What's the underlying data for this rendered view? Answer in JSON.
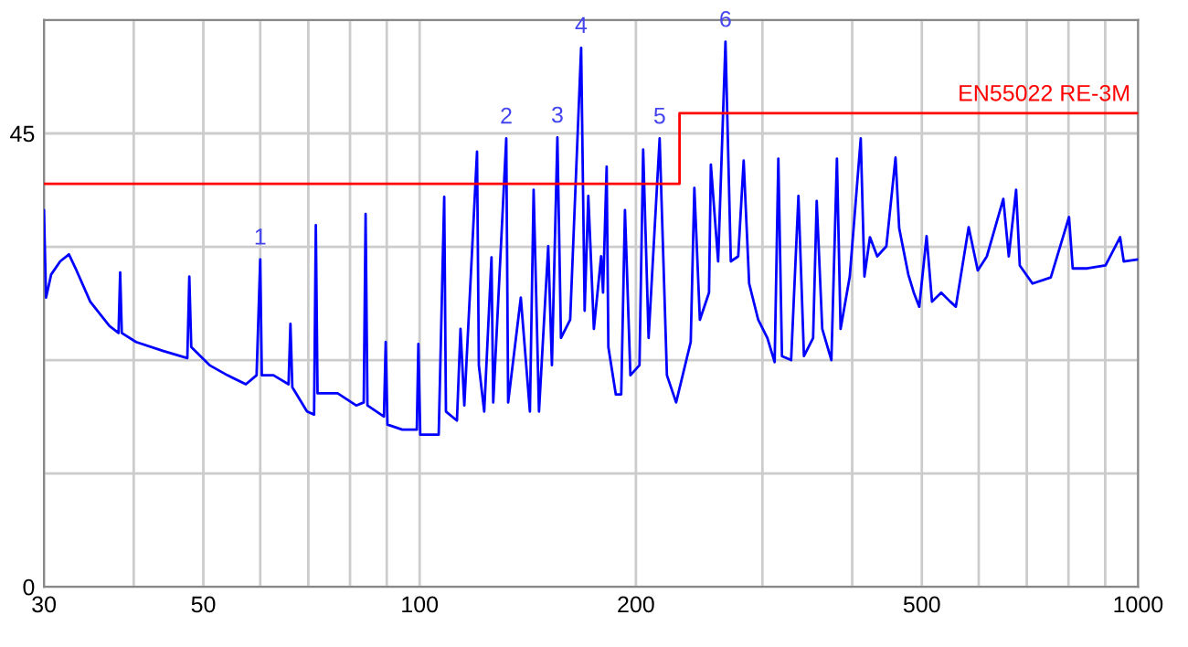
{
  "chart_data": {
    "type": "line",
    "log": "x",
    "grid": true,
    "legend": false,
    "xlim": [
      30,
      1000
    ],
    "ylim": [
      0,
      56.25
    ],
    "xticks": [
      30,
      {
        "value": 40,
        "label": null
      },
      50,
      {
        "value": 60,
        "label": null
      },
      {
        "value": 70,
        "label": null
      },
      {
        "value": 80,
        "label": null
      },
      {
        "value": 90,
        "label": null
      },
      100,
      200,
      {
        "value": 300,
        "label": null
      },
      {
        "value": 400,
        "label": null
      },
      500,
      {
        "value": 600,
        "label": null
      },
      {
        "value": 700,
        "label": null
      },
      {
        "value": 800,
        "label": null
      },
      {
        "value": 900,
        "label": null
      },
      1000
    ],
    "yticks": [
      0,
      {
        "value": 11.25,
        "label": null
      },
      {
        "value": 22.5,
        "label": null
      },
      {
        "value": 33.75,
        "label": null
      },
      45,
      {
        "value": 56.25,
        "label": null
      }
    ],
    "series": [
      {
        "color": "#0000ff",
        "x": [
          30,
          30.2,
          30.7,
          31.6,
          32.5,
          33.3,
          34.8,
          37.0,
          38.1,
          38.3,
          38.5,
          40.3,
          44.0,
          47.5,
          47.8,
          48.1,
          51.0,
          54.0,
          57.3,
          59.3,
          60,
          60.3,
          62.6,
          65.7,
          66.1,
          66.5,
          69.7,
          71.3,
          71.7,
          72.1,
          76.9,
          81.6,
          83.6,
          84.1,
          84.6,
          89.2,
          89.7,
          90.2,
          94.6,
          99.1,
          99.6,
          100.2,
          106.3,
          108.2,
          108.8,
          112.7,
          114.0,
          115.4,
          120.2,
          120.9,
          123.0,
          125.9,
          126.6,
          132.0,
          132.8,
          138.3,
          142.4,
          144.1,
          146.6,
          151.0,
          152.8,
          155.5,
          157.3,
          162.0,
          167.8,
          169.7,
          171.7,
          174.8,
          178.9,
          180.0,
          182.1,
          183.1,
          187.5,
          190.8,
          193.1,
          196.5,
          202.3,
          204.7,
          208.3,
          215.8,
          220.9,
          227.5,
          238.4,
          241.2,
          245.5,
          252.8,
          254.3,
          260.3,
          266.5,
          271.1,
          277.6,
          282.5,
          287.5,
          296.0,
          304.8,
          312.0,
          315.7,
          319.4,
          328.9,
          336.7,
          342.7,
          352.9,
          357.0,
          363.4,
          374.2,
          380.9,
          385.4,
          396.9,
          411.1,
          416.0,
          423.4,
          433.4,
          446.3,
          459.6,
          465.0,
          478.8,
          487.3,
          495.9,
          507.7,
          516.6,
          532.0,
          547.8,
          557.6,
          581.0,
          598.2,
          615.9,
          649.2,
          660.7,
          676.4,
          684.4,
          712.9,
          755.9,
          801.4,
          810.9,
          849.8,
          900.9,
          943.9,
          955.0,
          1000
        ],
        "values": [
          37.4,
          28.7,
          31.0,
          32.3,
          33.0,
          31.4,
          28.3,
          25.9,
          25.2,
          31.2,
          25.2,
          24.3,
          23.4,
          22.7,
          30.8,
          23.8,
          22.0,
          21.0,
          20.1,
          21.0,
          32.5,
          21.0,
          21.0,
          20.1,
          26.1,
          19.8,
          17.4,
          17.1,
          35.9,
          19.2,
          19.2,
          18.0,
          18.3,
          37.0,
          18.0,
          16.9,
          24.3,
          16.1,
          15.6,
          15.6,
          24.1,
          15.1,
          15.1,
          38.7,
          17.4,
          16.5,
          25.6,
          18.0,
          43.2,
          22.0,
          17.4,
          32.7,
          18.3,
          44.5,
          18.3,
          28.7,
          17.4,
          39.4,
          17.4,
          33.8,
          22.0,
          44.6,
          24.7,
          26.5,
          53.5,
          27.4,
          38.8,
          25.6,
          32.8,
          29.2,
          41.7,
          23.8,
          19.1,
          19.1,
          37.4,
          21.0,
          22.0,
          43.4,
          24.7,
          44.5,
          21.0,
          18.3,
          24.3,
          39.6,
          26.5,
          29.2,
          41.9,
          32.3,
          54.1,
          32.3,
          32.8,
          42.3,
          30.1,
          26.5,
          24.7,
          22.3,
          42.5,
          22.9,
          22.5,
          38.8,
          22.9,
          24.7,
          38.3,
          25.6,
          22.5,
          42.5,
          25.6,
          30.8,
          44.5,
          30.8,
          34.7,
          32.8,
          33.8,
          42.6,
          35.6,
          31.0,
          29.2,
          27.8,
          34.8,
          28.3,
          29.2,
          28.3,
          27.8,
          35.7,
          31.4,
          32.8,
          38.5,
          32.8,
          39.4,
          31.9,
          30.1,
          30.7,
          36.7,
          31.6,
          31.6,
          31.9,
          34.7,
          32.3,
          32.5
        ]
      },
      {
        "name": "EN55022 RE-3M",
        "color": "#ff0000",
        "x": [
          30,
          230,
          230,
          1000
        ],
        "values": [
          40,
          40,
          47,
          47
        ]
      }
    ],
    "annotations": [
      {
        "text": "1",
        "x": 60,
        "y": 32.5
      },
      {
        "text": "2",
        "x": 132.0,
        "y": 44.5
      },
      {
        "text": "3",
        "x": 155.5,
        "y": 44.6
      },
      {
        "text": "4",
        "x": 167.8,
        "y": 53.5
      },
      {
        "text": "5",
        "x": 215.8,
        "y": 44.5
      },
      {
        "text": "6",
        "x": 266.5,
        "y": 54.1
      }
    ]
  }
}
